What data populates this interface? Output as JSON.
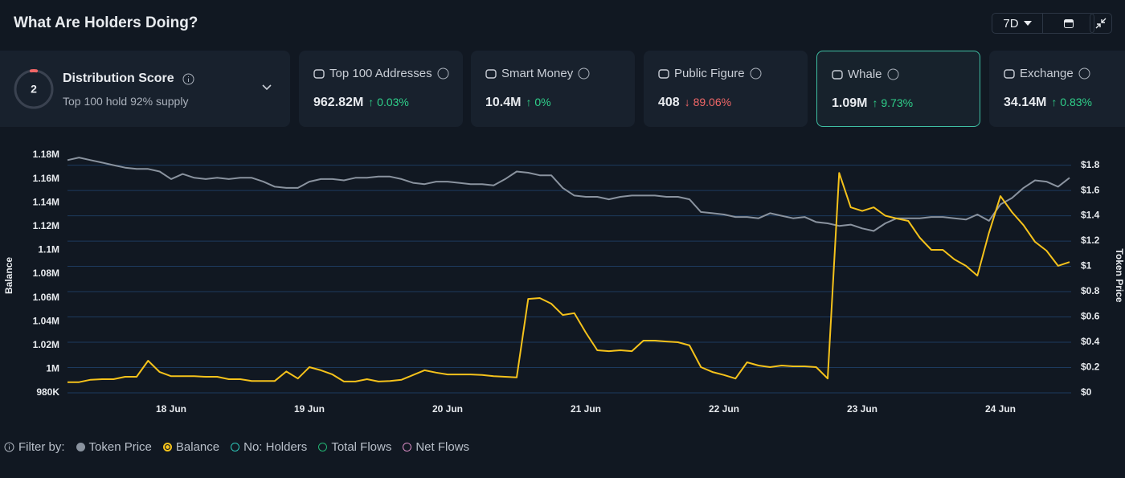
{
  "header": {
    "title": "What Are Holders Doing?",
    "period": "7D"
  },
  "score_card": {
    "score": "2",
    "title": "Distribution Score",
    "subtitle": "Top 100 hold 92% supply"
  },
  "cards": [
    {
      "title": "Top 100 Addresses",
      "value": "962.82M",
      "change": "↑ 0.03%",
      "direction": "up"
    },
    {
      "title": "Smart Money",
      "value": "10.4M",
      "change": "↑ 0%",
      "direction": "up"
    },
    {
      "title": "Public Figure",
      "value": "408",
      "change": "↓ 89.06%",
      "direction": "down"
    },
    {
      "title": "Whale",
      "value": "1.09M",
      "change": "↑ 9.73%",
      "direction": "up",
      "selected": true
    },
    {
      "title": "Exchange",
      "value": "34.14M",
      "change": "↑ 0.83%",
      "direction": "up"
    }
  ],
  "filter": {
    "label": "Filter by:",
    "extra": [
      "No: Holders",
      "Total Flows",
      "Net Flows"
    ],
    "extra_colors": [
      "#2ec4b6",
      "#22b573",
      "#d98cc4"
    ]
  },
  "chart_data": {
    "type": "line",
    "y_label": "Balance",
    "y2_label": "Token Price",
    "categories": [
      null,
      null,
      null,
      null,
      null,
      null,
      null,
      null,
      null,
      "18 Jun",
      null,
      null,
      null,
      null,
      null,
      null,
      null,
      null,
      null,
      null,
      null,
      "19 Jun",
      null,
      null,
      null,
      null,
      null,
      null,
      null,
      null,
      null,
      null,
      null,
      "20 Jun",
      null,
      null,
      null,
      null,
      null,
      null,
      null,
      null,
      null,
      null,
      null,
      "21 Jun",
      null,
      null,
      null,
      null,
      null,
      null,
      null,
      null,
      null,
      null,
      null,
      "22 Jun",
      null,
      null,
      null,
      null,
      null,
      null,
      null,
      null,
      null,
      null,
      null,
      "23 Jun",
      null,
      null,
      null,
      null,
      null,
      null,
      null,
      null,
      null,
      null,
      null,
      "24 Jun",
      null,
      null,
      null,
      null,
      null,
      null
    ],
    "ylim": [
      980000,
      1180000
    ],
    "yticks": [
      {
        "value": 980000,
        "label": "980K"
      },
      {
        "value": 1000000,
        "label": "1M"
      },
      {
        "value": 1020000,
        "label": "1.02M"
      },
      {
        "value": 1040000,
        "label": "1.04M"
      },
      {
        "value": 1060000,
        "label": "1.06M"
      },
      {
        "value": 1080000,
        "label": "1.08M"
      },
      {
        "value": 1100000,
        "label": "1.1M"
      },
      {
        "value": 1120000,
        "label": "1.12M"
      },
      {
        "value": 1140000,
        "label": "1.14M"
      },
      {
        "value": 1160000,
        "label": "1.16M"
      },
      {
        "value": 1180000,
        "label": "1.18M"
      }
    ],
    "y2lim": [
      0,
      1.88
    ],
    "y2ticks": [
      {
        "value": 0,
        "label": "$0"
      },
      {
        "value": 0.2,
        "label": "$0.2"
      },
      {
        "value": 0.4,
        "label": "$0.4"
      },
      {
        "value": 0.6,
        "label": "$0.6"
      },
      {
        "value": 0.8,
        "label": "$0.8"
      },
      {
        "value": 1,
        "label": "$1"
      },
      {
        "value": 1.2,
        "label": "$1.2"
      },
      {
        "value": 1.4,
        "label": "$1.4"
      },
      {
        "value": 1.6,
        "label": "$1.6"
      },
      {
        "value": 1.8,
        "label": "$1.8"
      }
    ],
    "grid": "y2",
    "series": [
      {
        "name": "Token Price",
        "color": "#8a939f",
        "axis": "y2",
        "values": [
          1.84,
          1.86,
          1.84,
          1.82,
          1.8,
          1.78,
          1.77,
          1.77,
          1.75,
          1.69,
          1.73,
          1.7,
          1.69,
          1.7,
          1.69,
          1.7,
          1.7,
          1.67,
          1.63,
          1.62,
          1.62,
          1.67,
          1.69,
          1.69,
          1.68,
          1.7,
          1.7,
          1.71,
          1.71,
          1.69,
          1.66,
          1.65,
          1.67,
          1.67,
          1.66,
          1.65,
          1.65,
          1.64,
          1.69,
          1.75,
          1.74,
          1.72,
          1.72,
          1.62,
          1.56,
          1.55,
          1.55,
          1.53,
          1.55,
          1.56,
          1.56,
          1.56,
          1.55,
          1.55,
          1.53,
          1.43,
          1.42,
          1.41,
          1.39,
          1.39,
          1.38,
          1.42,
          1.4,
          1.38,
          1.39,
          1.35,
          1.34,
          1.32,
          1.33,
          1.3,
          1.28,
          1.34,
          1.38,
          1.38,
          1.38,
          1.39,
          1.39,
          1.38,
          1.37,
          1.41,
          1.36,
          1.49,
          1.54,
          1.62,
          1.68,
          1.67,
          1.63,
          1.7
        ]
      },
      {
        "name": "Balance",
        "color": "#f5c21b",
        "axis": "y",
        "values": [
          989000,
          989000,
          991000,
          991500,
          991500,
          993500,
          993500,
          1007000,
          997500,
          994000,
          994000,
          994000,
          993500,
          993500,
          991500,
          991500,
          990000,
          990000,
          990000,
          998000,
          992000,
          1001600,
          999000,
          995500,
          989500,
          989500,
          991500,
          989500,
          990000,
          991000,
          995000,
          999000,
          997000,
          995500,
          995500,
          995500,
          995000,
          994000,
          993500,
          993000,
          1059000,
          1059700,
          1055000,
          1045500,
          1047000,
          1030700,
          1015800,
          1015100,
          1015800,
          1015100,
          1023900,
          1023900,
          1023200,
          1022600,
          1019900,
          1001600,
          997500,
          995000,
          992000,
          1005700,
          1003000,
          1001600,
          1003000,
          1002300,
          1002300,
          1001600,
          992000,
          1165000,
          1136000,
          1133000,
          1136000,
          1129000,
          1126600,
          1124600,
          1110400,
          1100300,
          1100300,
          1092200,
          1086800,
          1078600,
          1114500,
          1145500,
          1132000,
          1121000,
          1107000,
          1099600,
          1086800,
          1090000
        ]
      }
    ]
  }
}
